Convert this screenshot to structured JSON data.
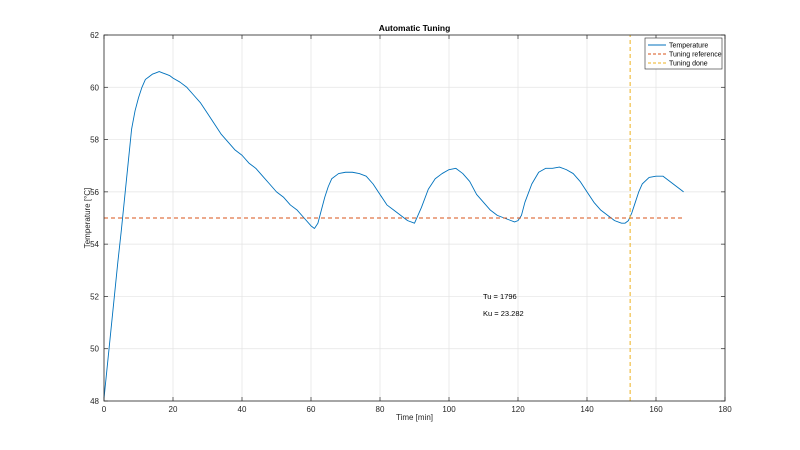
{
  "chart_data": {
    "type": "line",
    "title": "Automatic Tuning",
    "xlabel": "Time [min]",
    "ylabel": "Temperature [°C]",
    "xlim": [
      0,
      180
    ],
    "ylim": [
      48,
      62
    ],
    "xticks": [
      "0",
      "20",
      "40",
      "60",
      "80",
      "100",
      "120",
      "140",
      "160",
      "180"
    ],
    "yticks": [
      "48",
      "50",
      "52",
      "54",
      "56",
      "58",
      "60",
      "62"
    ],
    "grid": true,
    "legend_position": "top-right",
    "annotations": [
      "Tu = 1796",
      "Ku = 23.282"
    ],
    "series": [
      {
        "name": "Temperature",
        "color": "#0072BD",
        "style": "solid",
        "x": [
          0,
          1,
          2,
          3,
          4,
          5,
          6,
          7,
          8,
          9,
          10,
          11,
          12,
          13,
          14,
          15,
          16,
          17,
          18,
          19,
          20,
          22,
          24,
          26,
          28,
          30,
          32,
          34,
          36,
          38,
          40,
          42,
          44,
          46,
          48,
          50,
          52,
          54,
          56,
          58,
          60,
          61,
          62,
          63,
          64,
          65,
          66,
          68,
          70,
          72,
          74,
          76,
          78,
          80,
          82,
          84,
          86,
          88,
          90,
          92,
          94,
          96,
          98,
          100,
          102,
          104,
          106,
          108,
          110,
          112,
          114,
          116,
          118,
          119,
          120,
          121,
          122,
          124,
          126,
          128,
          130,
          132,
          134,
          136,
          138,
          140,
          142,
          144,
          146,
          148,
          150,
          151,
          152,
          153,
          154,
          155,
          156,
          158,
          160,
          162,
          164,
          166,
          168
        ],
        "y": [
          48.1,
          49.4,
          50.7,
          52.0,
          53.3,
          54.5,
          55.8,
          57.1,
          58.4,
          59.1,
          59.6,
          60.0,
          60.3,
          60.4,
          60.5,
          60.55,
          60.6,
          60.55,
          60.5,
          60.45,
          60.35,
          60.2,
          60.0,
          59.7,
          59.4,
          59.0,
          58.6,
          58.2,
          57.9,
          57.6,
          57.4,
          57.1,
          56.9,
          56.6,
          56.3,
          56.0,
          55.8,
          55.5,
          55.3,
          55.0,
          54.7,
          54.6,
          54.8,
          55.3,
          55.8,
          56.2,
          56.5,
          56.7,
          56.75,
          56.75,
          56.7,
          56.6,
          56.3,
          55.9,
          55.5,
          55.3,
          55.1,
          54.9,
          54.8,
          55.4,
          56.1,
          56.5,
          56.7,
          56.85,
          56.9,
          56.7,
          56.4,
          55.9,
          55.6,
          55.3,
          55.1,
          55.0,
          54.9,
          54.85,
          54.9,
          55.1,
          55.6,
          56.3,
          56.75,
          56.9,
          56.9,
          56.95,
          56.85,
          56.7,
          56.4,
          56.0,
          55.6,
          55.3,
          55.1,
          54.9,
          54.8,
          54.8,
          54.9,
          55.2,
          55.6,
          56.0,
          56.3,
          56.55,
          56.6,
          56.6,
          56.4,
          56.2,
          56.0
        ]
      },
      {
        "name": "Tuning reference",
        "color": "#D95319",
        "style": "dashed",
        "x": [
          0,
          168
        ],
        "y": [
          55,
          55
        ]
      },
      {
        "name": "Tuning done",
        "color": "#EDB120",
        "style": "dashed",
        "x": [
          152.5,
          152.5
        ],
        "y": [
          48,
          62
        ]
      }
    ]
  }
}
